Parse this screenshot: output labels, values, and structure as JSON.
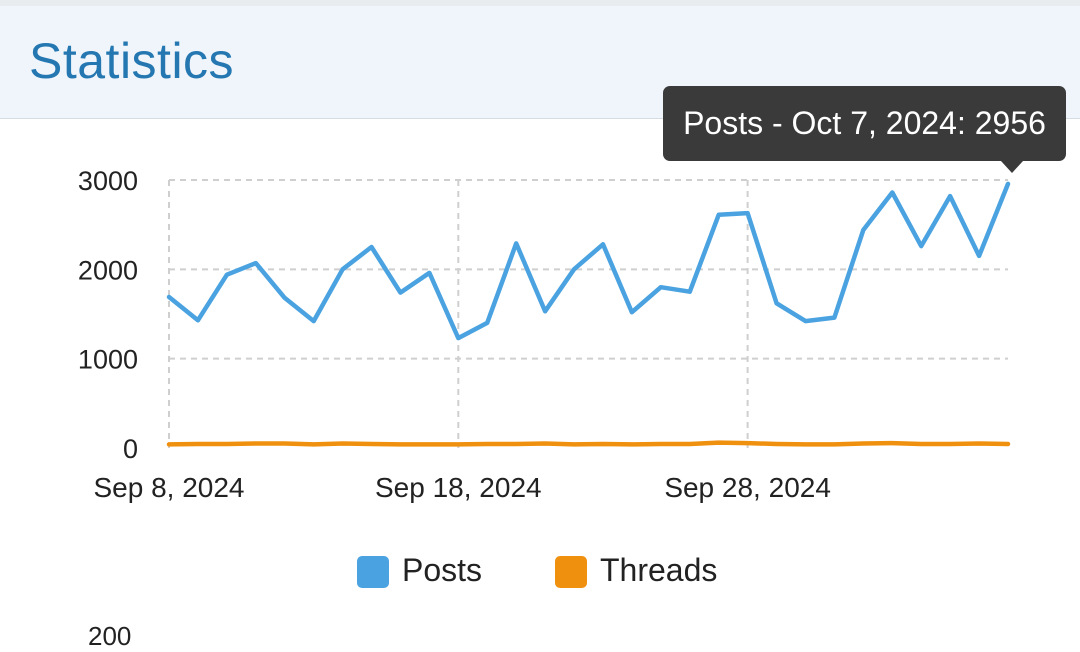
{
  "header": {
    "title": "Statistics"
  },
  "tooltip": {
    "text": "Posts - Oct 7, 2024: 2956"
  },
  "chart_data": {
    "type": "line",
    "x": [
      "2024-09-08",
      "2024-09-09",
      "2024-09-10",
      "2024-09-11",
      "2024-09-12",
      "2024-09-13",
      "2024-09-14",
      "2024-09-15",
      "2024-09-16",
      "2024-09-17",
      "2024-09-18",
      "2024-09-19",
      "2024-09-20",
      "2024-09-21",
      "2024-09-22",
      "2024-09-23",
      "2024-09-24",
      "2024-09-25",
      "2024-09-26",
      "2024-09-27",
      "2024-09-28",
      "2024-09-29",
      "2024-09-30",
      "2024-10-01",
      "2024-10-02",
      "2024-10-03",
      "2024-10-04",
      "2024-10-05",
      "2024-10-06",
      "2024-10-07"
    ],
    "series": [
      {
        "name": "Posts",
        "color": "#4aa3e0",
        "values": [
          1690,
          1430,
          1940,
          2070,
          1680,
          1420,
          2000,
          2250,
          1740,
          1960,
          1230,
          1400,
          2290,
          1530,
          2000,
          2280,
          1520,
          1800,
          1750,
          2610,
          2630,
          1620,
          1420,
          1460,
          2440,
          2860,
          2260,
          2820,
          2150,
          2956
        ]
      },
      {
        "name": "Threads",
        "color": "#f0900f",
        "values": [
          40,
          45,
          45,
          50,
          50,
          40,
          50,
          45,
          40,
          40,
          40,
          45,
          45,
          50,
          40,
          45,
          40,
          45,
          45,
          60,
          55,
          45,
          40,
          40,
          50,
          55,
          45,
          45,
          50,
          45
        ]
      }
    ],
    "ylim": [
      0,
      3000
    ],
    "yticks": [
      "0",
      "1000",
      "2000",
      "3000"
    ],
    "xtick_labels": [
      "Sep 8, 2024",
      "Sep 18, 2024",
      "Sep 28, 2024"
    ],
    "grid": true,
    "legend": {
      "position": "bottom",
      "items": [
        "Posts",
        "Threads"
      ]
    },
    "next_chart_first_tick": "200"
  }
}
